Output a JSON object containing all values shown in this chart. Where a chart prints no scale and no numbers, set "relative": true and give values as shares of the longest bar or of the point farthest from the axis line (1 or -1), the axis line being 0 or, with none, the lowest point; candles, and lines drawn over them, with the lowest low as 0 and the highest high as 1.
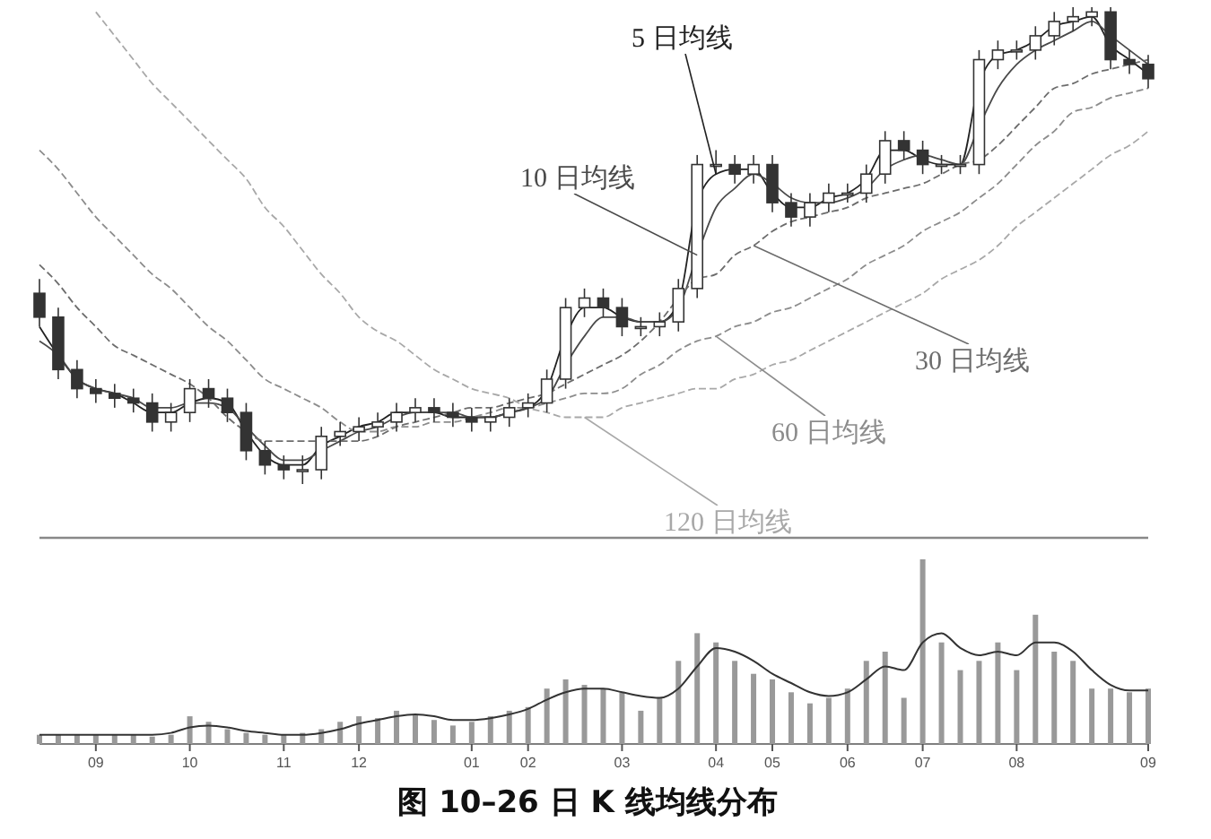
{
  "chart_data": [
    {
      "type": "candlestick",
      "relative": true,
      "tick_labels": false,
      "categories": [
        null,
        null,
        null,
        null,
        null,
        null,
        null,
        null,
        null,
        null,
        null,
        null,
        null,
        null,
        null,
        null,
        null,
        null,
        null,
        null,
        null,
        null,
        null,
        null,
        null,
        null,
        null,
        null,
        null,
        null,
        null,
        null,
        null,
        null,
        null,
        null,
        null,
        null,
        null,
        null,
        null,
        null,
        null,
        null,
        null,
        null,
        null,
        null,
        null,
        null,
        null,
        null,
        null,
        null,
        null,
        null,
        null,
        null,
        null,
        null
      ],
      "color": "#333333",
      "ohlc": [
        [
          0.4,
          0.43,
          0.33,
          0.35
        ],
        [
          0.35,
          0.37,
          0.22,
          0.24
        ],
        [
          0.24,
          0.26,
          0.18,
          0.2
        ],
        [
          0.2,
          0.22,
          0.17,
          0.19
        ],
        [
          0.19,
          0.21,
          0.16,
          0.18
        ],
        [
          0.18,
          0.2,
          0.15,
          0.17
        ],
        [
          0.17,
          0.19,
          0.11,
          0.13
        ],
        [
          0.13,
          0.17,
          0.11,
          0.15
        ],
        [
          0.15,
          0.22,
          0.13,
          0.2
        ],
        [
          0.2,
          0.22,
          0.16,
          0.18
        ],
        [
          0.18,
          0.2,
          0.13,
          0.15
        ],
        [
          0.15,
          0.17,
          0.05,
          0.07
        ],
        [
          0.07,
          0.09,
          0.02,
          0.04
        ],
        [
          0.04,
          0.06,
          0.01,
          0.03
        ],
        [
          0.03,
          0.06,
          0.0,
          0.03
        ],
        [
          0.03,
          0.12,
          0.01,
          0.1
        ],
        [
          0.1,
          0.13,
          0.08,
          0.11
        ],
        [
          0.11,
          0.14,
          0.09,
          0.12
        ],
        [
          0.12,
          0.15,
          0.1,
          0.13
        ],
        [
          0.13,
          0.17,
          0.11,
          0.15
        ],
        [
          0.15,
          0.18,
          0.13,
          0.16
        ],
        [
          0.16,
          0.18,
          0.13,
          0.15
        ],
        [
          0.15,
          0.17,
          0.12,
          0.14
        ],
        [
          0.14,
          0.16,
          0.11,
          0.13
        ],
        [
          0.13,
          0.16,
          0.11,
          0.14
        ],
        [
          0.14,
          0.18,
          0.12,
          0.16
        ],
        [
          0.16,
          0.19,
          0.14,
          0.17
        ],
        [
          0.17,
          0.24,
          0.15,
          0.22
        ],
        [
          0.22,
          0.39,
          0.2,
          0.37
        ],
        [
          0.37,
          0.41,
          0.35,
          0.39
        ],
        [
          0.39,
          0.41,
          0.35,
          0.37
        ],
        [
          0.37,
          0.39,
          0.31,
          0.33
        ],
        [
          0.33,
          0.35,
          0.31,
          0.33
        ],
        [
          0.33,
          0.36,
          0.31,
          0.34
        ],
        [
          0.34,
          0.43,
          0.32,
          0.41
        ],
        [
          0.41,
          0.69,
          0.39,
          0.67
        ],
        [
          0.67,
          0.7,
          0.65,
          0.67
        ],
        [
          0.67,
          0.69,
          0.63,
          0.65
        ],
        [
          0.65,
          0.69,
          0.63,
          0.67
        ],
        [
          0.67,
          0.69,
          0.57,
          0.59
        ],
        [
          0.59,
          0.61,
          0.54,
          0.56
        ],
        [
          0.56,
          0.61,
          0.54,
          0.59
        ],
        [
          0.59,
          0.63,
          0.57,
          0.61
        ],
        [
          0.61,
          0.63,
          0.59,
          0.61
        ],
        [
          0.61,
          0.67,
          0.59,
          0.65
        ],
        [
          0.65,
          0.74,
          0.63,
          0.72
        ],
        [
          0.72,
          0.74,
          0.68,
          0.7
        ],
        [
          0.7,
          0.72,
          0.65,
          0.67
        ],
        [
          0.67,
          0.69,
          0.65,
          0.67
        ],
        [
          0.67,
          0.69,
          0.65,
          0.67
        ],
        [
          0.67,
          0.91,
          0.65,
          0.89
        ],
        [
          0.89,
          0.93,
          0.87,
          0.91
        ],
        [
          0.91,
          0.93,
          0.89,
          0.91
        ],
        [
          0.91,
          0.96,
          0.89,
          0.94
        ],
        [
          0.94,
          0.99,
          0.92,
          0.97
        ],
        [
          0.97,
          1.0,
          0.95,
          0.98
        ],
        [
          0.98,
          1.0,
          0.96,
          0.99
        ],
        [
          0.99,
          1.0,
          0.87,
          0.89
        ],
        [
          0.89,
          0.91,
          0.86,
          0.88
        ],
        [
          0.88,
          0.9,
          0.83,
          0.85
        ]
      ],
      "series": [
        {
          "type": "line",
          "name": "5 日均线",
          "color": "#222222",
          "values": [
            0.33,
            0.27,
            0.22,
            0.2,
            0.19,
            0.17,
            0.15,
            0.15,
            0.17,
            0.18,
            0.17,
            0.11,
            0.06,
            0.04,
            0.04,
            0.08,
            0.1,
            0.12,
            0.13,
            0.15,
            0.15,
            0.15,
            0.14,
            0.14,
            0.14,
            0.15,
            0.16,
            0.2,
            0.31,
            0.37,
            0.37,
            0.35,
            0.34,
            0.34,
            0.38,
            0.59,
            0.65,
            0.66,
            0.66,
            0.61,
            0.58,
            0.58,
            0.6,
            0.61,
            0.64,
            0.7,
            0.7,
            0.68,
            0.67,
            0.67,
            0.84,
            0.9,
            0.91,
            0.93,
            0.96,
            0.97,
            0.98,
            0.92,
            0.89,
            0.86
          ]
        },
        {
          "type": "line",
          "name": "10 日均线",
          "color": "#4a4a4a",
          "values": [
            0.3,
            0.27,
            0.22,
            0.2,
            0.19,
            0.18,
            0.16,
            0.16,
            0.17,
            0.17,
            0.16,
            0.12,
            0.08,
            0.05,
            0.05,
            0.07,
            0.09,
            0.11,
            0.12,
            0.14,
            0.15,
            0.15,
            0.15,
            0.14,
            0.14,
            0.15,
            0.16,
            0.18,
            0.25,
            0.31,
            0.35,
            0.35,
            0.34,
            0.34,
            0.37,
            0.48,
            0.58,
            0.62,
            0.65,
            0.63,
            0.6,
            0.59,
            0.59,
            0.6,
            0.62,
            0.66,
            0.68,
            0.69,
            0.68,
            0.67,
            0.75,
            0.83,
            0.88,
            0.91,
            0.93,
            0.95,
            0.97,
            0.94,
            0.91,
            0.88
          ]
        },
        {
          "type": "line",
          "name": "30 日均线",
          "color": "#6c6c6c",
          "line_style": "dashed",
          "values": [
            0.46,
            0.42,
            0.37,
            0.33,
            0.29,
            0.27,
            0.25,
            0.23,
            0.21,
            0.18,
            0.14,
            0.11,
            0.09,
            0.09,
            0.09,
            0.09,
            0.09,
            0.09,
            0.1,
            0.12,
            0.13,
            0.14,
            0.15,
            0.16,
            0.16,
            0.17,
            0.18,
            0.19,
            0.21,
            0.23,
            0.25,
            0.27,
            0.3,
            0.34,
            0.39,
            0.43,
            0.44,
            0.48,
            0.5,
            0.53,
            0.55,
            0.56,
            0.57,
            0.58,
            0.6,
            0.61,
            0.62,
            0.63,
            0.65,
            0.67,
            0.68,
            0.71,
            0.75,
            0.79,
            0.83,
            0.84,
            0.86,
            0.87,
            0.88,
            0.89
          ]
        },
        {
          "type": "line",
          "name": "60 日均线",
          "color": "#8c8c8c",
          "line_style": "dashed",
          "values": [
            0.7,
            0.66,
            0.61,
            0.56,
            0.52,
            0.48,
            0.44,
            0.41,
            0.37,
            0.33,
            0.3,
            0.26,
            0.22,
            0.2,
            0.18,
            0.16,
            0.13,
            0.11,
            0.11,
            0.12,
            0.12,
            0.13,
            0.13,
            0.14,
            0.15,
            0.16,
            0.16,
            0.17,
            0.18,
            0.19,
            0.19,
            0.2,
            0.23,
            0.25,
            0.28,
            0.3,
            0.31,
            0.33,
            0.34,
            0.36,
            0.37,
            0.39,
            0.41,
            0.43,
            0.46,
            0.48,
            0.5,
            0.53,
            0.55,
            0.57,
            0.6,
            0.63,
            0.67,
            0.71,
            0.74,
            0.78,
            0.79,
            0.81,
            0.82,
            0.83
          ]
        },
        {
          "type": "line",
          "name": "120 日均线",
          "color": "#a8a8a8",
          "line_style": "dashed",
          "values": [
            null,
            null,
            null,
            0.99,
            0.94,
            0.89,
            0.84,
            0.8,
            0.76,
            0.72,
            0.68,
            0.64,
            0.58,
            0.54,
            0.49,
            0.44,
            0.4,
            0.35,
            0.32,
            0.3,
            0.27,
            0.24,
            0.22,
            0.2,
            0.19,
            0.18,
            0.16,
            0.15,
            0.14,
            0.14,
            0.14,
            0.16,
            0.17,
            0.18,
            0.19,
            0.2,
            0.2,
            0.22,
            0.23,
            0.25,
            0.26,
            0.28,
            0.3,
            0.32,
            0.34,
            0.36,
            0.38,
            0.4,
            0.43,
            0.45,
            0.47,
            0.5,
            0.54,
            0.57,
            0.6,
            0.63,
            0.66,
            0.69,
            0.71,
            0.74
          ]
        }
      ]
    },
    {
      "type": "bar",
      "relative": true,
      "tick_labels": "x",
      "title": "图 10–26 日 K 线均线分布",
      "categories": [
        null,
        null,
        null,
        "09",
        null,
        null,
        null,
        null,
        "10",
        null,
        null,
        null,
        null,
        "11",
        null,
        null,
        null,
        "12",
        null,
        null,
        null,
        null,
        null,
        "01",
        null,
        null,
        "02",
        null,
        null,
        null,
        null,
        "03",
        null,
        null,
        null,
        null,
        "04",
        null,
        null,
        "05",
        null,
        null,
        null,
        "06",
        null,
        null,
        null,
        "07",
        null,
        null,
        null,
        null,
        "08",
        null,
        null,
        null,
        null,
        null,
        null,
        "09"
      ],
      "series": [
        {
          "color": "#999999",
          "values": [
            0.05,
            0.05,
            0.05,
            0.05,
            0.05,
            0.05,
            0.04,
            0.05,
            0.15,
            0.12,
            0.08,
            0.06,
            0.05,
            0.05,
            0.06,
            0.08,
            0.12,
            0.15,
            0.14,
            0.18,
            0.16,
            0.13,
            0.1,
            0.12,
            0.15,
            0.18,
            0.2,
            0.3,
            0.35,
            0.32,
            0.3,
            0.28,
            0.18,
            0.25,
            0.45,
            0.6,
            0.55,
            0.45,
            0.38,
            0.35,
            0.28,
            0.22,
            0.25,
            0.3,
            0.45,
            0.5,
            0.25,
            1.0,
            0.55,
            0.4,
            0.45,
            0.55,
            0.4,
            0.7,
            0.5,
            0.45,
            0.3,
            0.3,
            0.28,
            0.3
          ]
        },
        {
          "type": "line",
          "color": "#333333",
          "values": [
            0.05,
            0.05,
            0.05,
            0.05,
            0.05,
            0.05,
            0.05,
            0.06,
            0.09,
            0.1,
            0.09,
            0.07,
            0.06,
            0.05,
            0.05,
            0.06,
            0.08,
            0.11,
            0.13,
            0.15,
            0.16,
            0.15,
            0.13,
            0.13,
            0.14,
            0.16,
            0.19,
            0.24,
            0.28,
            0.3,
            0.3,
            0.28,
            0.26,
            0.25,
            0.3,
            0.42,
            0.52,
            0.5,
            0.45,
            0.38,
            0.33,
            0.28,
            0.26,
            0.28,
            0.35,
            0.42,
            0.4,
            0.55,
            0.6,
            0.52,
            0.48,
            0.5,
            0.48,
            0.55,
            0.55,
            0.5,
            0.4,
            0.32,
            0.29,
            0.29
          ]
        }
      ]
    }
  ]
}
